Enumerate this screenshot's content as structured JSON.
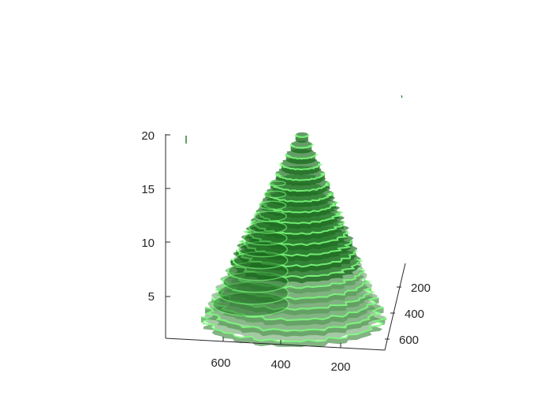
{
  "chart_data": {
    "type": "surface",
    "description_of_marks": "stacked semi-transparent green slices",
    "colors": {
      "upper_slices": "#2e7d32",
      "lower_slices": "#7fb07f",
      "slice_edge_highlight": "#7cff7c",
      "axis": "#262626"
    },
    "z_axis": {
      "ticks": [
        5,
        10,
        15,
        20
      ],
      "tick_labels": [
        "5",
        "10",
        "15",
        "20"
      ],
      "range": [
        1,
        20
      ]
    },
    "x_axis": {
      "ticks": [
        600,
        400,
        200
      ],
      "tick_labels": [
        "600",
        "400",
        "200"
      ]
    },
    "y_axis": {
      "ticks": [
        200,
        400,
        600
      ],
      "tick_labels": [
        "200",
        "400",
        "600"
      ]
    },
    "slice_count": 20,
    "grid": false,
    "legend": false
  }
}
